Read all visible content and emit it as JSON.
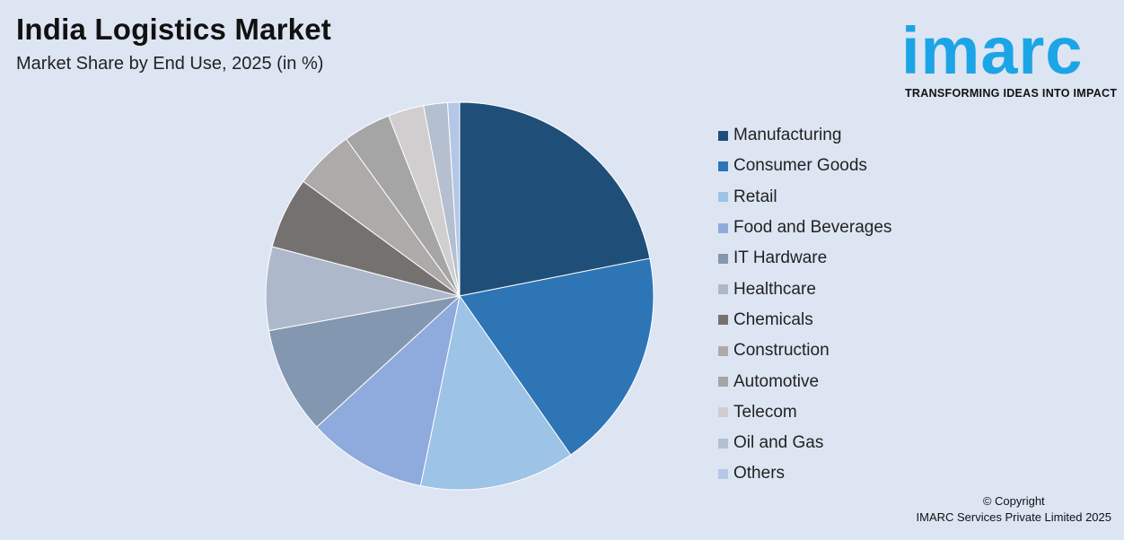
{
  "header": {
    "title": "India Logistics Market",
    "subtitle": "Market Share by End Use, 2025 (in %)"
  },
  "logo": {
    "word": "imarc",
    "tagline": "TRANSFORMING IDEAS INTO IMPACT",
    "color": "#1ca5e6"
  },
  "chart_data": {
    "type": "pie",
    "title": "India Logistics Market",
    "subtitle": "Market Share by End Use, 2025 (in %)",
    "legend_position": "right",
    "categories": [
      "Manufacturing",
      "Consumer Goods",
      "Retail",
      "Food and Beverages",
      "IT Hardware",
      "Healthcare",
      "Chemicals",
      "Construction",
      "Automotive",
      "Telecom",
      "Oil and Gas",
      "Others"
    ],
    "values": [
      22,
      18.5,
      13,
      10,
      9,
      7,
      6,
      5,
      4,
      3,
      2,
      1
    ],
    "colors": [
      "#1f4e79",
      "#2e75b6",
      "#9dc3e6",
      "#8faadc",
      "#8497b0",
      "#adb9ca",
      "#767171",
      "#aeaaaa",
      "#a5a5a5",
      "#d0cece",
      "#b4c0d0",
      "#b4c7e7"
    ]
  },
  "footer": {
    "copyright_line1": "© Copyright",
    "copyright_line2": "IMARC Services Private Limited 2025"
  }
}
